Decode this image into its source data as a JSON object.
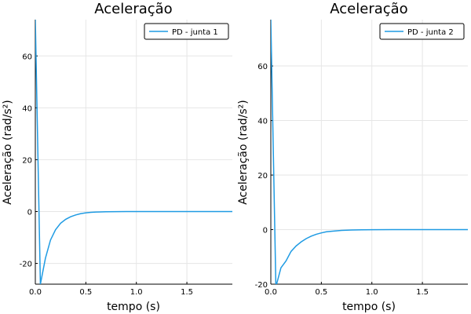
{
  "chart_data": [
    {
      "type": "line",
      "title": "Aceleração",
      "xlabel": "tempo (s)",
      "ylabel": "Aceleração (rad/s²)",
      "xlim": [
        0,
        1.95
      ],
      "ylim": [
        -28,
        74
      ],
      "xticks": [
        0,
        0.5,
        1,
        1.5
      ],
      "xtick_labels": [
        "0.0",
        "0.5",
        "1.0",
        "1.5"
      ],
      "yticks": [
        -20,
        0,
        20,
        40,
        60
      ],
      "ytick_labels": [
        "-20",
        "0",
        "20",
        "40",
        "60"
      ],
      "grid": true,
      "legend_position": "top-right",
      "color": "#1f9be3",
      "series": [
        {
          "name": "PD - junta 1",
          "x": [
            0,
            0.05,
            0.1,
            0.15,
            0.2,
            0.25,
            0.3,
            0.35,
            0.4,
            0.45,
            0.5,
            0.55,
            0.6,
            0.7,
            0.8,
            0.9,
            1.0,
            1.2,
            1.4,
            1.6,
            1.8,
            1.95
          ],
          "y": [
            74,
            -28,
            -18,
            -11,
            -7,
            -4.5,
            -3,
            -2,
            -1.3,
            -0.8,
            -0.5,
            -0.3,
            -0.2,
            -0.08,
            -0.03,
            -0.01,
            0,
            0,
            0,
            0,
            0,
            0
          ]
        }
      ]
    },
    {
      "type": "line",
      "title": "Aceleração",
      "xlabel": "tempo (s)",
      "ylabel": "Aceleração (rad/s²)",
      "xlim": [
        0,
        1.95
      ],
      "ylim": [
        -20,
        77
      ],
      "xticks": [
        0,
        0.5,
        1,
        1.5
      ],
      "xtick_labels": [
        "0.0",
        "0.5",
        "1.0",
        "1.5"
      ],
      "yticks": [
        -20,
        0,
        20,
        40,
        60
      ],
      "ytick_labels": [
        "-20",
        "0",
        "20",
        "40",
        "60"
      ],
      "grid": true,
      "legend_position": "top-right",
      "color": "#1f9be3",
      "series": [
        {
          "name": "PD - junta 2",
          "x": [
            0,
            0.05,
            0.1,
            0.15,
            0.2,
            0.25,
            0.3,
            0.35,
            0.4,
            0.45,
            0.5,
            0.55,
            0.6,
            0.7,
            0.8,
            0.9,
            1.0,
            1.2,
            1.4,
            1.6,
            1.8,
            1.95
          ],
          "y": [
            77,
            -21,
            -14,
            -11.5,
            -8,
            -6,
            -4.5,
            -3.3,
            -2.4,
            -1.7,
            -1.2,
            -0.8,
            -0.6,
            -0.3,
            -0.15,
            -0.07,
            -0.03,
            0,
            0,
            0,
            0,
            0
          ]
        }
      ]
    }
  ]
}
